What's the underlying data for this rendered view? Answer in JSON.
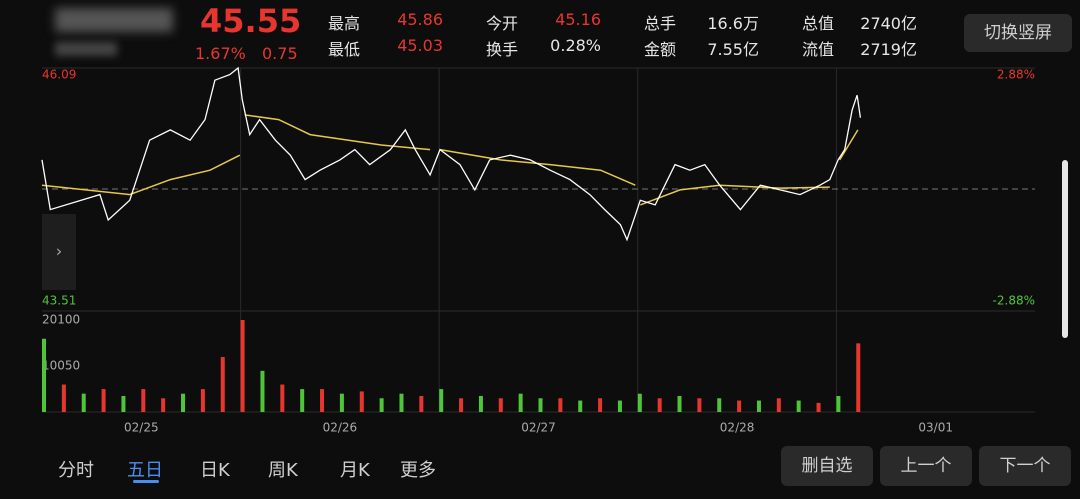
{
  "header": {
    "price": "45.55",
    "change_pct": "1.67%",
    "change": "0.75",
    "stats": [
      {
        "label": "最高",
        "value": "45.86",
        "color": "#e8362e"
      },
      {
        "label": "最低",
        "value": "45.03",
        "color": "#e8362e"
      },
      {
        "label": "今开",
        "value": "45.16",
        "color": "#e8362e"
      },
      {
        "label": "换手",
        "value": "0.28%",
        "color": "#e6e6e6"
      },
      {
        "label": "总手",
        "value": "16.6万",
        "color": "#e6e6e6"
      },
      {
        "label": "金额",
        "value": "7.55亿",
        "color": "#e6e6e6"
      },
      {
        "label": "总值",
        "value": "2740亿",
        "color": "#e6e6e6"
      },
      {
        "label": "流值",
        "value": "2719亿",
        "color": "#e6e6e6"
      }
    ],
    "rotate_button": "切换竖屏"
  },
  "chart": {
    "ylim": [
      43.51,
      46.09
    ],
    "ylim_labels": [
      "43.51",
      "46.09"
    ],
    "pct_labels": [
      "-2.88%",
      "2.88%"
    ],
    "base": 44.8,
    "xlim": [
      0,
      1200
    ],
    "days": [
      "02/25",
      "02/26",
      "02/27",
      "02/28",
      "03/01"
    ],
    "price_line": {
      "color": "#ffffff",
      "x": [
        0,
        10,
        70,
        80,
        106,
        130,
        155,
        179,
        197,
        209,
        227,
        237,
        242,
        251,
        263,
        282,
        300,
        318,
        336,
        360,
        378,
        396,
        421,
        439,
        451,
        469,
        481,
        505,
        523,
        541,
        566,
        590,
        614,
        638,
        662,
        680,
        699,
        707,
        717,
        723,
        741,
        765,
        783,
        801,
        819,
        844,
        868,
        892,
        916,
        940,
        952,
        962,
        970,
        979,
        985,
        989
      ],
      "values": [
        45.11,
        44.58,
        44.74,
        44.47,
        44.68,
        45.32,
        45.43,
        45.32,
        45.54,
        45.96,
        46.02,
        46.09,
        45.75,
        45.38,
        45.54,
        45.32,
        45.16,
        44.9,
        45.0,
        45.11,
        45.22,
        45.06,
        45.22,
        45.43,
        45.22,
        44.95,
        45.22,
        45.06,
        44.79,
        45.11,
        45.16,
        45.11,
        45.0,
        44.9,
        44.74,
        44.58,
        44.42,
        44.26,
        44.52,
        44.68,
        44.63,
        45.06,
        45.0,
        45.06,
        44.84,
        44.58,
        44.84,
        44.79,
        44.74,
        44.84,
        44.9,
        45.11,
        45.22,
        45.64,
        45.8,
        45.56
      ]
    },
    "avg_line": {
      "color": "#e6c84a",
      "x": [
        0,
        106,
        155,
        203,
        239,
        null,
        245,
        286,
        324,
        409,
        469,
        null,
        481,
        554,
        614,
        675,
        717,
        null,
        723,
        771,
        819,
        892,
        952,
        null,
        964,
        986
      ],
      "values": [
        44.84,
        44.74,
        44.9,
        45.0,
        45.16,
        null,
        45.59,
        45.54,
        45.38,
        45.27,
        45.22,
        null,
        45.22,
        45.11,
        45.06,
        45.0,
        44.84,
        null,
        44.63,
        44.79,
        44.84,
        44.81,
        44.82,
        null,
        45.11,
        45.43
      ]
    },
    "volume": {
      "ylim": [
        0,
        20100
      ],
      "yticks": [
        {
          "value": 10050,
          "label": "10050"
        },
        20100
      ],
      "x": [
        0,
        24,
        48,
        72,
        96,
        120,
        144,
        168,
        192,
        216,
        240,
        264,
        288,
        312,
        336,
        360,
        384,
        408,
        432,
        456,
        480,
        504,
        528,
        552,
        576,
        600,
        624,
        648,
        672,
        696,
        720,
        744,
        768,
        792,
        816,
        840,
        864,
        888,
        912,
        936,
        960,
        984
      ],
      "values": [
        16000,
        6000,
        4000,
        5000,
        3500,
        5000,
        3000,
        4000,
        5000,
        12000,
        20100,
        9000,
        6000,
        5000,
        5000,
        4000,
        4500,
        3000,
        4000,
        3500,
        5000,
        3000,
        3500,
        3000,
        4000,
        3000,
        3000,
        2500,
        3000,
        2500,
        4000,
        3000,
        3500,
        3000,
        3000,
        2500,
        2500,
        3000,
        2500,
        2000,
        3500,
        15000
      ],
      "colors": [
        "#4fc53a",
        "#e8362e",
        "#4fc53a",
        "#e8362e",
        "#4fc53a",
        "#e8362e",
        "#e8362e",
        "#4fc53a",
        "#e8362e",
        "#e8362e",
        "#e8362e",
        "#4fc53a",
        "#e8362e",
        "#4fc53a",
        "#e8362e",
        "#4fc53a",
        "#e8362e",
        "#4fc53a",
        "#4fc53a",
        "#e8362e",
        "#4fc53a",
        "#e8362e",
        "#4fc53a",
        "#e8362e",
        "#4fc53a",
        "#4fc53a",
        "#e8362e",
        "#4fc53a",
        "#e8362e",
        "#4fc53a",
        "#4fc53a",
        "#e8362e",
        "#4fc53a",
        "#e8362e",
        "#4fc53a",
        "#e8362e",
        "#4fc53a",
        "#e8362e",
        "#4fc53a",
        "#e8362e",
        "#4fc53a",
        "#e8362e"
      ]
    }
  },
  "tabs": {
    "items": [
      "分时",
      "五日",
      "日K",
      "周K",
      "月K",
      "更多"
    ],
    "active": 1
  },
  "buttons": [
    "删自选",
    "上一个",
    "下一个"
  ]
}
